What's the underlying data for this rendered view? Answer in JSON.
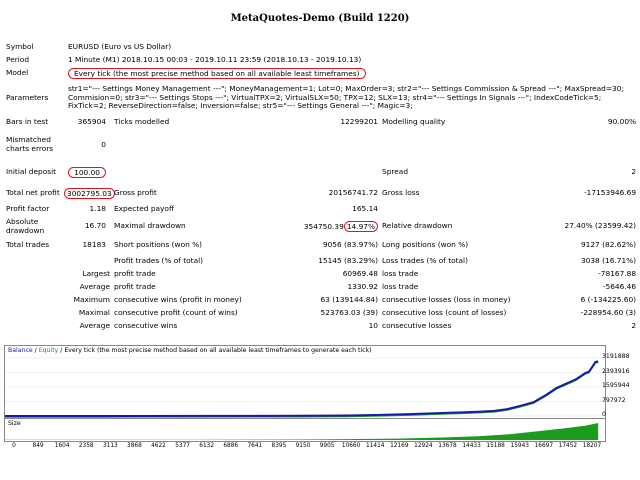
{
  "report": {
    "title": "MetaQuotes-Demo (Build 1220)",
    "symbol_label": "Symbol",
    "symbol_value": "EURUSD (Euro vs US Dollar)",
    "period_label": "Period",
    "period_value": "1 Minute (M1) 2018.10.15 00:03 - 2019.10.11 23:59 (2018.10.13 - 2019.10.13)",
    "model_label": "Model",
    "model_value": "Every tick (the most precise method based on all available least timeframes)",
    "parameters_label": "Parameters",
    "parameters_value": "str1=\"--- Settings Money Management ---\"; MoneyManagement=1; Lot=0; MaxOrder=3; str2=\"--- Settings Commission & Spread ---\"; MaxSpread=30; Commision=0; str3=\"--- Settings Stops ---\"; VirtualTPX=2; VirtualSLX=50; TPX=12; SLX=13; str4=\"--- Settings In Signals ---\"; IndexCodeTick=5; FixTick=2; ReverseDirection=false; Inversion=false; str5=\"--- Settings General ---\"; Magic=3;",
    "bars_label": "Bars in test",
    "bars_value": "365904",
    "ticks_label": "Ticks modelled",
    "ticks_value": "12299201",
    "quality_label": "Modelling quality",
    "quality_value": "90.00%",
    "mismatched_label": "Mismatched charts errors",
    "mismatched_value": "0",
    "deposit_label": "Initial deposit",
    "deposit_value": "100.00",
    "spread_label": "Spread",
    "spread_value": "2",
    "netprofit_label": "Total net profit",
    "netprofit_value": "3002795.03",
    "grossprofit_label": "Gross profit",
    "grossprofit_value": "20156741.72",
    "grossloss_label": "Gross loss",
    "grossloss_value": "-17153946.69",
    "pf_label": "Profit factor",
    "pf_value": "1.18",
    "payoff_label": "Expected payoff",
    "payoff_value": "165.14",
    "absdd_label": "Absolute drawdown",
    "absdd_value": "16.70",
    "maxdd_label": "Maximal drawdown",
    "maxdd_value": "354750.39",
    "maxdd_pct": "14.97%",
    "reldd_label": "Relative drawdown",
    "reldd_value": "27.40% (23599.42)",
    "trades_label": "Total trades",
    "trades_value": "18183",
    "short_label": "Short positions (won %)",
    "short_value": "9056 (83.97%)",
    "long_label": "Long positions (won %)",
    "long_value": "9127 (82.62%)",
    "profit_trades_label": "Profit trades (% of total)",
    "profit_trades_value": "15145 (83.29%)",
    "loss_trades_label": "Loss trades (% of total)",
    "loss_trades_value": "3038 (16.71%)",
    "largest_label": "Largest",
    "average_label": "Average",
    "maximum_label": "Maximum",
    "maximal_label": "Maximal",
    "profit_trade_label": "profit trade",
    "loss_trade_label": "loss trade",
    "largest_profit": "60969.48",
    "largest_loss": "-78167.88",
    "average_profit": "1330.92",
    "average_loss": "-5646.46",
    "cons_wins_money_label": "consecutive wins (profit in money)",
    "cons_wins_money": "63 (139144.84)",
    "cons_losses_money_label": "consecutive losses (loss in money)",
    "cons_losses_money": "6 (-134225.60)",
    "cons_profit_count_label": "consecutive profit (count of wins)",
    "cons_profit_count": "523763.03 (39)",
    "cons_loss_count_label": "consecutive loss (count of losses)",
    "cons_loss_count": "-228954.60 (3)",
    "cons_wins_label": "consecutive wins",
    "cons_wins": "10",
    "cons_losses_label": "consecutive losses",
    "cons_losses": "2"
  },
  "graph": {
    "legend_balance": "Balance",
    "legend_sep1": " / ",
    "legend_equity": "Equity",
    "legend_rest": " / Every tick (the most precise method based on all available least timeframes to generate each tick)",
    "balance_color": "#1a1aa8",
    "equity_color": "#1c9c1c",
    "y_ticks": [
      "3191888",
      "2393916",
      "1595944",
      "797972",
      "0"
    ],
    "size_label": "Size",
    "x_ticks": [
      "0",
      "849",
      "1604",
      "2358",
      "3113",
      "3868",
      "4622",
      "5377",
      "6132",
      "6886",
      "7641",
      "8395",
      "9150",
      "9905",
      "10660",
      "11414",
      "12169",
      "12924",
      "13678",
      "14433",
      "15188",
      "15943",
      "16697",
      "17452",
      "18207"
    ]
  },
  "chart_data": {
    "type": "line",
    "title": "",
    "xlabel": "",
    "ylabel": "",
    "ylim": [
      0,
      3191888
    ],
    "xlim": [
      0,
      18207
    ],
    "series": [
      {
        "name": "Balance",
        "x": [
          0,
          3000,
          6000,
          9000,
          10500,
          11500,
          12500,
          13500,
          14000,
          14500,
          15000,
          15400,
          15800,
          16200,
          16600,
          16900,
          17200,
          17500,
          17800,
          17900,
          18000,
          18100,
          18183
        ],
        "y": [
          100,
          1000,
          3000,
          10000,
          30000,
          60000,
          110000,
          170000,
          200000,
          230000,
          280000,
          380000,
          560000,
          760000,
          1180000,
          1540000,
          1780000,
          2020000,
          2380000,
          2440000,
          2700000,
          2980000,
          3002895
        ]
      }
    ],
    "size_series": {
      "x": [
        0,
        3000,
        6000,
        9000,
        10500,
        12000,
        13500,
        14500,
        15500,
        16500,
        17200,
        17800,
        18183
      ],
      "y": [
        0.01,
        0.01,
        0.02,
        0.03,
        0.05,
        0.08,
        0.15,
        0.22,
        0.35,
        0.55,
        0.7,
        0.85,
        1.0
      ]
    }
  }
}
